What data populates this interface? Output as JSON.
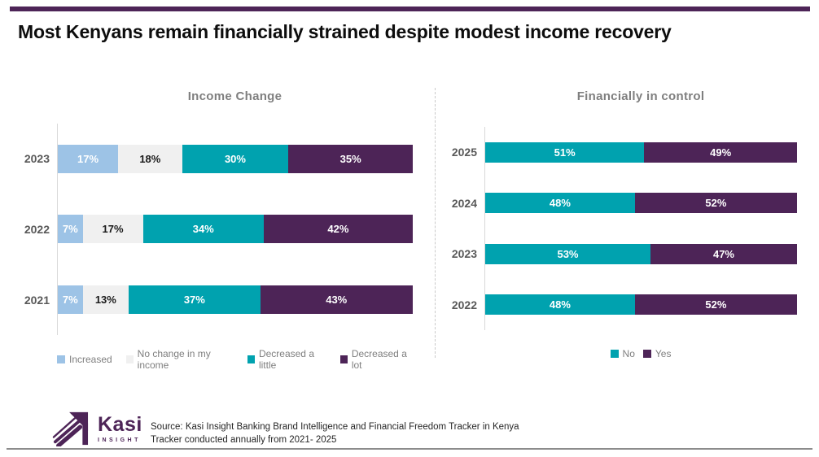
{
  "title": "Most Kenyans remain financially strained despite modest income recovery",
  "colors": {
    "purple": "#4D2457",
    "teal": "#00A2AF",
    "light_blue": "#9DC3E6",
    "light_gray": "#F0F0F0",
    "axis_gray": "#D9D9D9",
    "divider_gray": "#C9C9C9",
    "chart_title_gray": "#7F7F7F",
    "year_label_gray": "#595959",
    "legend_text_gray": "#7F7F7F"
  },
  "chart_data": [
    {
      "type": "bar",
      "variant": "horizontal-stacked",
      "title": "Income Change",
      "categories": [
        "2023",
        "2022",
        "2021"
      ],
      "series": [
        {
          "name": "Increased",
          "color_key": "light_blue",
          "label_color": "#FFFFFF",
          "values": [
            17,
            7,
            7
          ]
        },
        {
          "name": "No change in my income",
          "color_key": "light_gray",
          "label_color": "#1A1A1A",
          "values": [
            18,
            17,
            13
          ]
        },
        {
          "name": "Decreased a little",
          "color_key": "teal",
          "label_color": "#FFFFFF",
          "values": [
            30,
            34,
            37
          ]
        },
        {
          "name": "Decreased a lot",
          "color_key": "purple",
          "label_color": "#FFFFFF",
          "values": [
            35,
            42,
            43
          ]
        }
      ],
      "xlim": [
        0,
        100
      ],
      "value_suffix": "%",
      "legend_position": "bottom",
      "grid": false
    },
    {
      "type": "bar",
      "variant": "horizontal-stacked",
      "title": "Financially in control",
      "categories": [
        "2025",
        "2024",
        "2023",
        "2022"
      ],
      "series": [
        {
          "name": "No",
          "color_key": "teal",
          "label_color": "#FFFFFF",
          "values": [
            51,
            48,
            53,
            48
          ]
        },
        {
          "name": "Yes",
          "color_key": "purple",
          "label_color": "#FFFFFF",
          "values": [
            49,
            52,
            47,
            52
          ]
        }
      ],
      "xlim": [
        0,
        100
      ],
      "value_suffix": "%",
      "legend_position": "bottom",
      "grid": false
    }
  ],
  "footer": {
    "logo_text": "Kasi",
    "logo_subtext": "INSIGHT",
    "source_line1": "Source: Kasi Insight Banking Brand Intelligence and Financial Freedom Tracker in Kenya",
    "source_line2": "Tracker conducted annually from 2021- 2025"
  }
}
